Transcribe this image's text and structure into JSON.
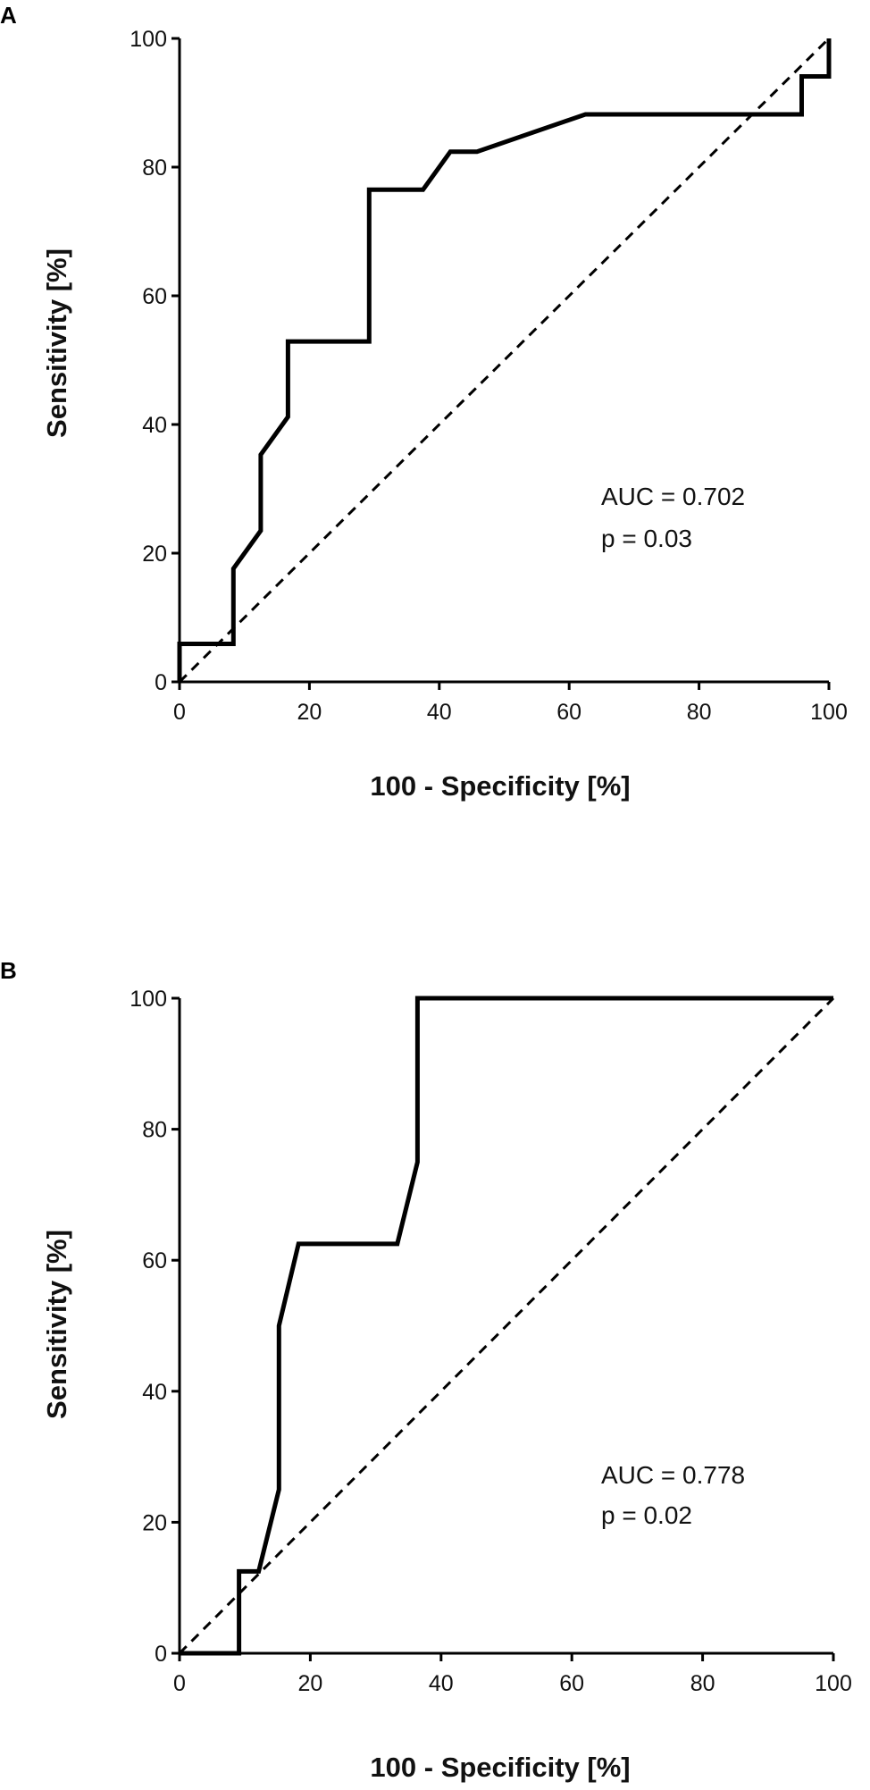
{
  "chart_data": [
    {
      "type": "line",
      "panel_label": "A",
      "xlabel": "100 - Specificity [%]",
      "ylabel": "Sensitivity [%]",
      "xlim": [
        0,
        100
      ],
      "ylim": [
        0,
        100
      ],
      "xticks": [
        "0",
        "20",
        "40",
        "60",
        "80",
        "100"
      ],
      "yticks": [
        "0",
        "20",
        "40",
        "60",
        "80",
        "100"
      ],
      "grid": false,
      "annotations": [
        "AUC = 0.702",
        "p = 0.03"
      ],
      "series": [
        {
          "style": "solid",
          "x": [
            0,
            0,
            8.3,
            8.3,
            12.5,
            12.5,
            16.7,
            16.7,
            29.2,
            29.2,
            37.5,
            41.7,
            45.8,
            62.5,
            95.8,
            95.8,
            100,
            100
          ],
          "y": [
            0,
            5.9,
            5.9,
            17.6,
            23.5,
            35.3,
            41.2,
            52.9,
            52.9,
            76.5,
            76.5,
            82.4,
            82.4,
            88.2,
            88.2,
            94.1,
            94.1,
            100
          ]
        },
        {
          "style": "dashed",
          "x": [
            0,
            100
          ],
          "y": [
            0,
            100
          ]
        }
      ]
    },
    {
      "type": "line",
      "panel_label": "B",
      "xlabel": "100 - Specificity [%]",
      "ylabel": "Sensitivity [%]",
      "xlim": [
        0,
        100
      ],
      "ylim": [
        0,
        100
      ],
      "xticks": [
        "0",
        "20",
        "40",
        "60",
        "80",
        "100"
      ],
      "yticks": [
        "0",
        "20",
        "40",
        "60",
        "80",
        "100"
      ],
      "grid": false,
      "annotations": [
        "AUC = 0.778",
        "p = 0.02"
      ],
      "series": [
        {
          "style": "solid",
          "x": [
            0,
            9.1,
            9.1,
            12.1,
            15.2,
            15.2,
            18.2,
            33.3,
            36.4,
            36.4,
            100
          ],
          "y": [
            0,
            0,
            12.5,
            12.5,
            25,
            50,
            62.5,
            62.5,
            75,
            100,
            100
          ]
        },
        {
          "style": "dashed",
          "x": [
            0,
            100
          ],
          "y": [
            0,
            100
          ]
        }
      ]
    }
  ]
}
